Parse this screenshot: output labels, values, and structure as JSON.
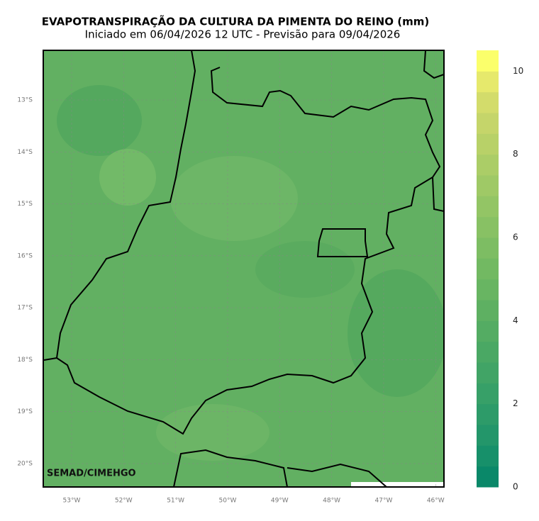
{
  "title": "EVAPOTRANSPIRAÇÃO DA CULTURA DA PIMENTA DO REINO (mm)",
  "subtitle": "Iniciado em 06/04/2026 12 UTC - Previsão para 09/04/2026",
  "map": {
    "credit": "SEMAD/CIMEHGO",
    "lat_lim": [
      -20.45,
      -12.045
    ],
    "lon_lim": [
      -53.545,
      -45.84
    ],
    "lat_ticks": [
      {
        "value": -13,
        "label": "13°S"
      },
      {
        "value": -14,
        "label": "14°S"
      },
      {
        "value": -15,
        "label": "15°S"
      },
      {
        "value": -16,
        "label": "16°S"
      },
      {
        "value": -17,
        "label": "17°S"
      },
      {
        "value": -18,
        "label": "18°S"
      },
      {
        "value": -19,
        "label": "19°S"
      },
      {
        "value": -20,
        "label": "20°S"
      }
    ],
    "lon_ticks": [
      {
        "value": -53,
        "label": "53°W"
      },
      {
        "value": -52,
        "label": "52°W"
      },
      {
        "value": -51,
        "label": "51°W"
      },
      {
        "value": -50,
        "label": "50°W"
      },
      {
        "value": -49,
        "label": "49°W"
      },
      {
        "value": -48,
        "label": "48°W"
      },
      {
        "value": -47,
        "label": "47°W"
      },
      {
        "value": -46,
        "label": "46°W"
      }
    ],
    "grid": true
  },
  "colorbar": {
    "lim": [
      0,
      10.5
    ],
    "ticks": [
      0,
      2,
      4,
      6,
      8,
      10
    ],
    "colors": [
      "#0a8869",
      "#17906a",
      "#23966a",
      "#2d9b69",
      "#37a068",
      "#41a466",
      "#4aa864",
      "#54ac63",
      "#5eb062",
      "#68b562",
      "#72b962",
      "#7dbd63",
      "#88c164",
      "#93c565",
      "#9fc966",
      "#abcd67",
      "#b8d168",
      "#c5d56a",
      "#d3dc6b",
      "#e6e96c",
      "#fbff6b"
    ]
  }
}
